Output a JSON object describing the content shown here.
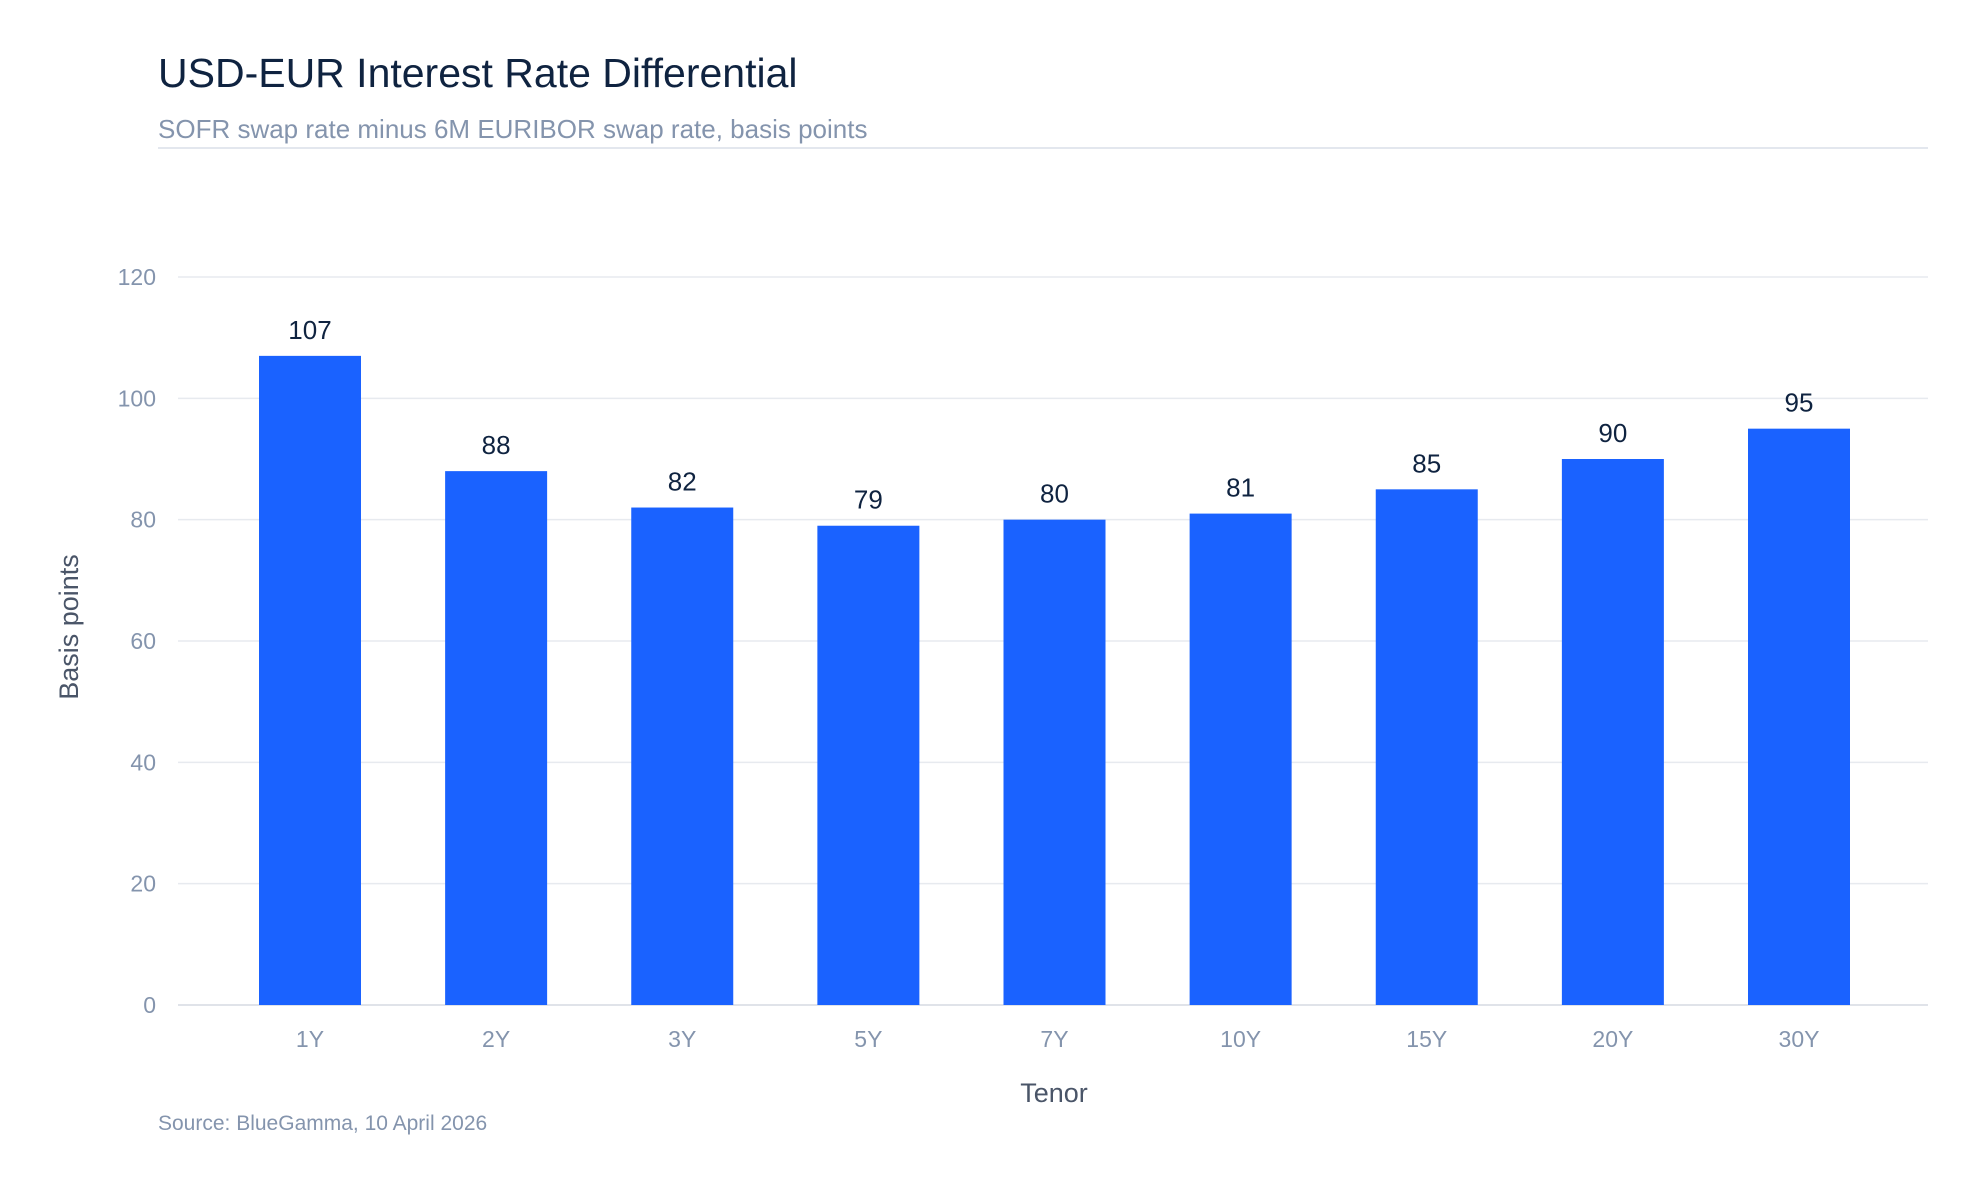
{
  "chart_data": {
    "type": "bar",
    "title": "USD-EUR Interest Rate Differential",
    "subtitle": "SOFR swap rate minus 6M EURIBOR swap rate, basis points",
    "xlabel": "Tenor",
    "ylabel": "Basis points",
    "categories": [
      "1Y",
      "2Y",
      "3Y",
      "5Y",
      "7Y",
      "10Y",
      "15Y",
      "20Y",
      "30Y"
    ],
    "values": [
      107,
      88,
      82,
      79,
      80,
      81,
      85,
      90,
      95
    ],
    "ylim": [
      0,
      120
    ],
    "yticks": [
      0,
      20,
      40,
      60,
      80,
      100,
      120
    ],
    "grid": true,
    "legend": false,
    "data_labels": true,
    "bar_color": "#1a62ff",
    "source": "Source: BlueGamma, 10 April 2026"
  }
}
